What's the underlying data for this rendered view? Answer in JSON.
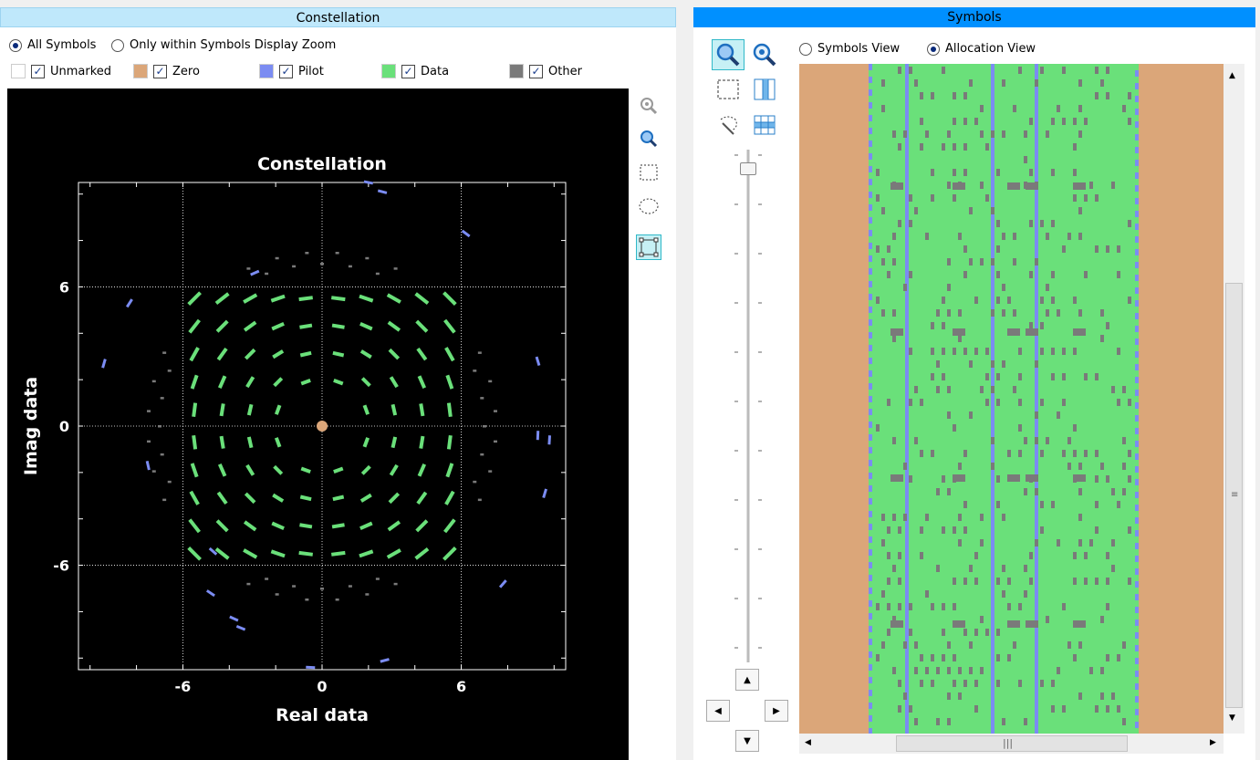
{
  "constellation_panel": {
    "title": "Constellation",
    "radio_all": "All Symbols",
    "radio_zoom": "Only within Symbols Display Zoom",
    "legend": [
      {
        "label": "Unmarked",
        "color": "#ffffff",
        "checked": true
      },
      {
        "label": "Zero",
        "color": "#dba679",
        "checked": true
      },
      {
        "label": "Pilot",
        "color": "#7b8cf2",
        "checked": true
      },
      {
        "label": "Data",
        "color": "#6ae07a",
        "checked": true
      },
      {
        "label": "Other",
        "color": "#7a7a7a",
        "checked": true
      }
    ],
    "tools": [
      "zoom-fit-icon",
      "zoom-icon",
      "rect-select-icon",
      "ellipse-select-icon",
      "frame-select-icon"
    ]
  },
  "chart_data": {
    "type": "scatter",
    "title": "Constellation",
    "xlabel": "Real data",
    "ylabel": "Imag data",
    "xlim": [
      -10.5,
      10.5
    ],
    "ylim": [
      -10.5,
      10.5
    ],
    "xticks": [
      -6,
      0,
      6
    ],
    "yticks": [
      6,
      0,
      -6
    ],
    "grid": true,
    "series": [
      {
        "name": "Data",
        "color": "#6ae07a",
        "points_grid": {
          "x": [
            -5.5,
            -4.3,
            -3.1,
            -1.9,
            -0.7,
            0.7,
            1.9,
            3.1,
            4.3,
            5.5
          ],
          "y": [
            5.5,
            4.3,
            3.1,
            1.9,
            0.7,
            -0.7,
            -1.9,
            -3.1,
            -4.3,
            -5.5
          ]
        }
      },
      {
        "name": "Zero",
        "color": "#dba679",
        "points": [
          [
            0,
            0
          ]
        ]
      },
      {
        "name": "Other",
        "color": "#7a7a7a",
        "ring_radius": 7.5
      },
      {
        "name": "Pilot",
        "color": "#7b8cf2",
        "points": [
          [
            -8.3,
            5.3
          ],
          [
            -9.4,
            2.7
          ],
          [
            -7.5,
            -1.7
          ],
          [
            -4.8,
            -7.2
          ],
          [
            -3.8,
            -8.3
          ],
          [
            -3.5,
            -8.7
          ],
          [
            2.6,
            10.1
          ],
          [
            2,
            10.5
          ],
          [
            -2.9,
            6.6
          ],
          [
            6.2,
            8.3
          ],
          [
            9.3,
            -0.4
          ],
          [
            9.8,
            -0.6
          ],
          [
            9.6,
            -2.9
          ],
          [
            7.8,
            -6.8
          ],
          [
            2.7,
            -10.1
          ],
          [
            -0.5,
            -10.4
          ],
          [
            -4.7,
            -5.4
          ],
          [
            9.3,
            2.8
          ]
        ]
      }
    ]
  },
  "symbols_panel": {
    "title": "Symbols",
    "radio_symbols": "Symbols View",
    "radio_allocation": "Allocation View",
    "colors": {
      "zero": "#dba679",
      "data": "#6ae07a",
      "pilot": "#7b8cf2",
      "other": "#7a7a7a"
    },
    "tools": [
      "zoom-in-icon",
      "zoom-fit-icon",
      "rect-select-icon",
      "column-select-icon",
      "lasso-select-icon",
      "table-icon"
    ]
  }
}
